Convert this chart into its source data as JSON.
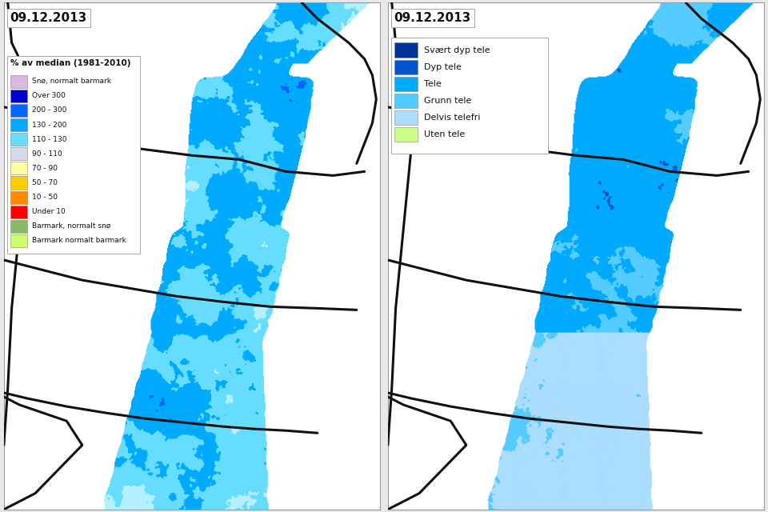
{
  "left_title": "09.12.2013",
  "right_title": "09.12.2013",
  "left_legend_header": "% av median (1981-2010)",
  "left_legend_items": [
    {
      "label": "Snø, normalt barmark",
      "color": "#dbb8e0"
    },
    {
      "label": "Over 300",
      "color": "#0000cc"
    },
    {
      "label": "200 - 300",
      "color": "#0066ff"
    },
    {
      "label": "130 - 200",
      "color": "#00aaff"
    },
    {
      "label": "110 - 130",
      "color": "#66ddff"
    },
    {
      "label": "90 - 110",
      "color": "#d8d8e8"
    },
    {
      "label": "70 - 90",
      "color": "#ffffa0"
    },
    {
      "label": "50 - 70",
      "color": "#ffcc00"
    },
    {
      "label": "10 - 50",
      "color": "#ff8800"
    },
    {
      "label": "Under 10",
      "color": "#ff0000"
    },
    {
      "label": "Barmark, normalt snø",
      "color": "#88bb66"
    },
    {
      "label": "Barmark normalt barmark",
      "color": "#ccff66"
    }
  ],
  "right_legend_items": [
    {
      "label": "Svært dyp tele",
      "color": "#003399"
    },
    {
      "label": "Dyp tele",
      "color": "#0055cc"
    },
    {
      "label": "Tele",
      "color": "#00aaff"
    },
    {
      "label": "Grunn tele",
      "color": "#55ccff"
    },
    {
      "label": "Delvis telefri",
      "color": "#aaddff"
    },
    {
      "label": "Uten tele",
      "color": "#ccff88"
    }
  ],
  "bg_color": "#e8e8e8",
  "panel_bg": "#ffffff",
  "border_line_color": "#111111"
}
